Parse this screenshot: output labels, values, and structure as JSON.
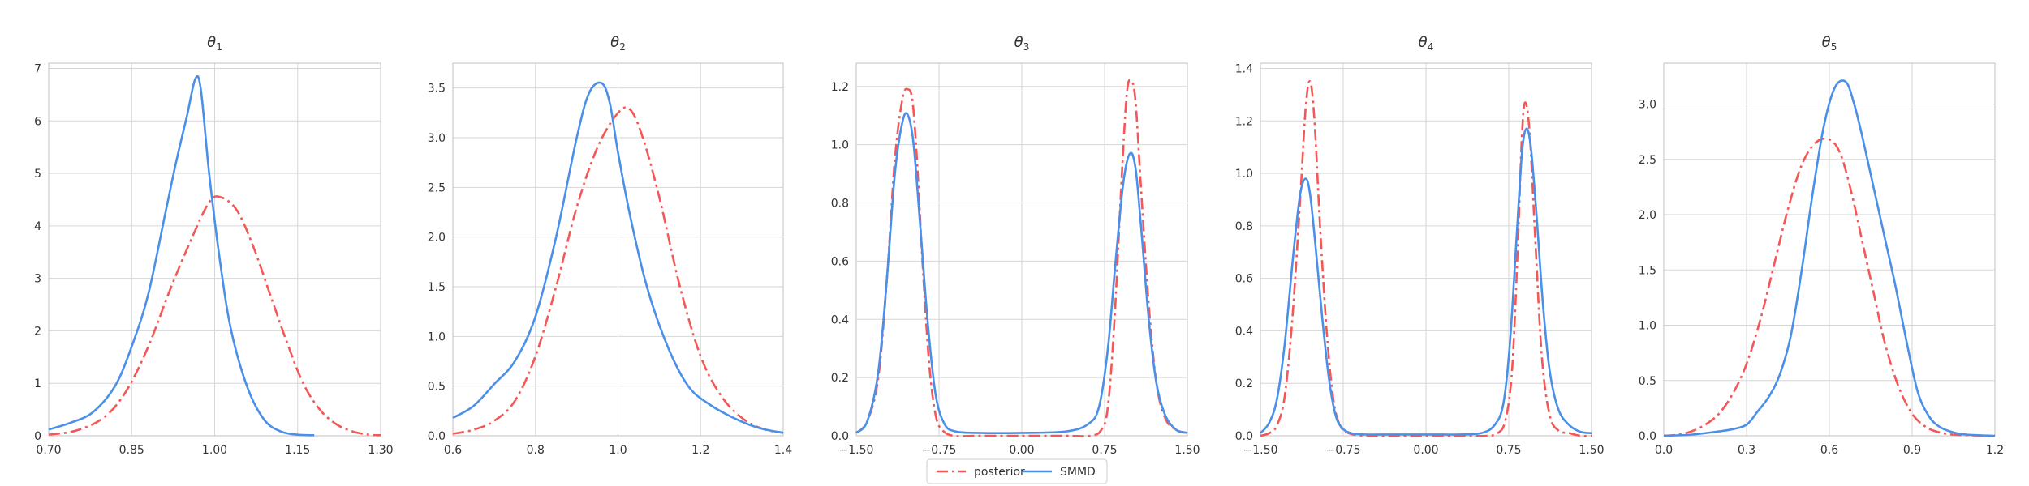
{
  "colors": {
    "posterior": "#f55656",
    "smmd": "#4a90e8",
    "grid": "#d6d6d6",
    "frame": "#cccccc",
    "text": "#333333"
  },
  "legend": {
    "items": [
      {
        "label": "posterior",
        "style": "dashdot",
        "color": "#f55656"
      },
      {
        "label": "SMMD",
        "style": "solid",
        "color": "#4a90e8"
      }
    ],
    "placement": "bottom-center"
  },
  "chart_data": [
    {
      "type": "line",
      "title": "θ1",
      "title_base": "θ",
      "title_sub": "1",
      "xlim": [
        0.7,
        1.3
      ],
      "ylim": [
        0,
        7.1
      ],
      "xticks": [
        "0.70",
        "0.85",
        "1.00",
        "1.15",
        "1.30"
      ],
      "xtick_values": [
        0.7,
        0.85,
        1.0,
        1.15,
        1.3
      ],
      "yticks": [
        "0",
        "1",
        "2",
        "3",
        "4",
        "5",
        "6",
        "7"
      ],
      "ytick_values": [
        0,
        1,
        2,
        3,
        4,
        5,
        6,
        7
      ],
      "grid": true,
      "series": [
        {
          "name": "posterior",
          "style": "dashdot",
          "x": [
            0.7,
            0.75,
            0.8,
            0.84,
            0.88,
            0.92,
            0.96,
            0.99,
            1.01,
            1.04,
            1.07,
            1.1,
            1.13,
            1.16,
            1.19,
            1.22,
            1.25,
            1.28,
            1.3
          ],
          "y": [
            0.02,
            0.1,
            0.35,
            0.85,
            1.7,
            2.8,
            3.8,
            4.45,
            4.55,
            4.3,
            3.6,
            2.7,
            1.8,
            1.0,
            0.5,
            0.22,
            0.08,
            0.02,
            0.01
          ]
        },
        {
          "name": "SMMD",
          "style": "solid",
          "x": [
            0.7,
            0.74,
            0.78,
            0.82,
            0.85,
            0.88,
            0.91,
            0.93,
            0.95,
            0.965,
            0.975,
            0.99,
            1.01,
            1.03,
            1.06,
            1.09,
            1.12,
            1.15,
            1.18
          ],
          "y": [
            0.12,
            0.25,
            0.45,
            0.95,
            1.7,
            2.7,
            4.2,
            5.2,
            6.1,
            6.8,
            6.6,
            5.0,
            3.3,
            2.0,
            0.9,
            0.3,
            0.08,
            0.02,
            0.01
          ]
        }
      ]
    },
    {
      "type": "line",
      "title": "θ2",
      "title_base": "θ",
      "title_sub": "2",
      "xlim": [
        0.6,
        1.4
      ],
      "ylim": [
        0,
        3.75
      ],
      "xticks": [
        "0.6",
        "0.8",
        "1.0",
        "1.2",
        "1.4"
      ],
      "xtick_values": [
        0.6,
        0.8,
        1.0,
        1.2,
        1.4
      ],
      "yticks": [
        "0.0",
        "0.5",
        "1.0",
        "1.5",
        "2.0",
        "2.5",
        "3.0",
        "3.5"
      ],
      "ytick_values": [
        0.0,
        0.5,
        1.0,
        1.5,
        2.0,
        2.5,
        3.0,
        3.5
      ],
      "grid": true,
      "series": [
        {
          "name": "posterior",
          "style": "dashdot",
          "x": [
            0.6,
            0.65,
            0.7,
            0.75,
            0.8,
            0.85,
            0.9,
            0.95,
            1.0,
            1.03,
            1.06,
            1.1,
            1.15,
            1.2,
            1.25,
            1.3,
            1.35,
            1.4
          ],
          "y": [
            0.02,
            0.06,
            0.15,
            0.35,
            0.8,
            1.5,
            2.3,
            2.9,
            3.25,
            3.28,
            3.0,
            2.4,
            1.5,
            0.8,
            0.4,
            0.18,
            0.07,
            0.03
          ]
        },
        {
          "name": "SMMD",
          "style": "solid",
          "x": [
            0.6,
            0.65,
            0.7,
            0.75,
            0.8,
            0.85,
            0.9,
            0.93,
            0.96,
            0.98,
            1.0,
            1.03,
            1.07,
            1.12,
            1.17,
            1.22,
            1.28,
            1.34,
            1.4
          ],
          "y": [
            0.18,
            0.3,
            0.52,
            0.75,
            1.2,
            2.0,
            3.0,
            3.45,
            3.55,
            3.35,
            2.85,
            2.2,
            1.5,
            0.9,
            0.5,
            0.32,
            0.18,
            0.08,
            0.03
          ]
        }
      ]
    },
    {
      "type": "line",
      "title": "θ3",
      "title_base": "θ",
      "title_sub": "3",
      "xlim": [
        -1.5,
        1.5
      ],
      "ylim": [
        0,
        1.28
      ],
      "xticks": [
        "−1.50",
        "−0.75",
        "0.00",
        "0.75",
        "1.50"
      ],
      "xtick_values": [
        -1.5,
        -0.75,
        0.0,
        0.75,
        1.5
      ],
      "yticks": [
        "0.0",
        "0.2",
        "0.4",
        "0.6",
        "0.8",
        "1.0",
        "1.2"
      ],
      "ytick_values": [
        0.0,
        0.2,
        0.4,
        0.6,
        0.8,
        1.0,
        1.2
      ],
      "grid": true,
      "series": [
        {
          "name": "posterior",
          "style": "dashdot",
          "x": [
            -1.5,
            -1.4,
            -1.3,
            -1.22,
            -1.15,
            -1.08,
            -1.03,
            -0.99,
            -0.95,
            -0.9,
            -0.84,
            -0.78,
            -0.72,
            -0.62,
            -0.4,
            0.0,
            0.4,
            0.62,
            0.72,
            0.78,
            0.84,
            0.9,
            0.95,
            0.99,
            1.03,
            1.08,
            1.15,
            1.22,
            1.3,
            1.4,
            1.5
          ],
          "y": [
            0.01,
            0.05,
            0.2,
            0.55,
            0.95,
            1.16,
            1.19,
            1.15,
            0.95,
            0.6,
            0.25,
            0.07,
            0.02,
            0.0,
            0.0,
            0.0,
            0.0,
            0.0,
            0.02,
            0.1,
            0.4,
            0.85,
            1.17,
            1.22,
            1.15,
            0.85,
            0.45,
            0.18,
            0.06,
            0.02,
            0.01
          ]
        },
        {
          "name": "SMMD",
          "style": "solid",
          "x": [
            -1.5,
            -1.4,
            -1.3,
            -1.22,
            -1.15,
            -1.08,
            -1.03,
            -0.98,
            -0.92,
            -0.85,
            -0.78,
            -0.7,
            -0.6,
            -0.4,
            0.0,
            0.4,
            0.6,
            0.7,
            0.78,
            0.85,
            0.92,
            0.98,
            1.03,
            1.08,
            1.15,
            1.22,
            1.3,
            1.4,
            1.5
          ],
          "y": [
            0.01,
            0.05,
            0.22,
            0.55,
            0.9,
            1.08,
            1.1,
            1.0,
            0.72,
            0.38,
            0.14,
            0.04,
            0.015,
            0.01,
            0.01,
            0.015,
            0.04,
            0.1,
            0.3,
            0.6,
            0.87,
            0.97,
            0.92,
            0.72,
            0.4,
            0.18,
            0.07,
            0.02,
            0.01
          ]
        }
      ]
    },
    {
      "type": "line",
      "title": "θ4",
      "title_base": "θ",
      "title_sub": "4",
      "xlim": [
        -1.5,
        1.5
      ],
      "ylim": [
        0,
        1.42
      ],
      "xticks": [
        "−1.50",
        "−0.75",
        "0.00",
        "0.75",
        "1.50"
      ],
      "xtick_values": [
        -1.5,
        -0.75,
        0.0,
        0.75,
        1.5
      ],
      "yticks": [
        "0.0",
        "0.2",
        "0.4",
        "0.6",
        "0.8",
        "1.0",
        "1.2",
        "1.4"
      ],
      "ytick_values": [
        0.0,
        0.2,
        0.4,
        0.6,
        0.8,
        1.0,
        1.2,
        1.4
      ],
      "grid": true,
      "series": [
        {
          "name": "posterior",
          "style": "dashdot",
          "x": [
            -1.5,
            -1.42,
            -1.35,
            -1.28,
            -1.21,
            -1.14,
            -1.09,
            -1.05,
            -1.01,
            -0.96,
            -0.9,
            -0.84,
            -0.78,
            -0.7,
            -0.55,
            -0.3,
            0.0,
            0.3,
            0.55,
            0.65,
            0.72,
            0.78,
            0.83,
            0.87,
            0.9,
            0.94,
            0.99,
            1.05,
            1.12,
            1.2,
            1.3,
            1.4,
            1.5
          ],
          "y": [
            0.0,
            0.01,
            0.04,
            0.15,
            0.45,
            0.9,
            1.25,
            1.35,
            1.2,
            0.8,
            0.4,
            0.14,
            0.04,
            0.01,
            0.0,
            0.0,
            0.0,
            0.0,
            0.0,
            0.01,
            0.06,
            0.25,
            0.7,
            1.15,
            1.27,
            1.15,
            0.75,
            0.3,
            0.08,
            0.02,
            0.01,
            0.0,
            0.0
          ]
        },
        {
          "name": "SMMD",
          "style": "solid",
          "x": [
            -1.5,
            -1.42,
            -1.35,
            -1.28,
            -1.2,
            -1.14,
            -1.09,
            -1.05,
            -1.0,
            -0.94,
            -0.88,
            -0.82,
            -0.76,
            -0.68,
            -0.55,
            -0.3,
            0.0,
            0.3,
            0.5,
            0.62,
            0.7,
            0.76,
            0.82,
            0.87,
            0.91,
            0.95,
            1.0,
            1.06,
            1.12,
            1.2,
            1.3,
            1.4,
            1.5
          ],
          "y": [
            0.01,
            0.05,
            0.14,
            0.35,
            0.7,
            0.92,
            0.98,
            0.92,
            0.72,
            0.45,
            0.22,
            0.08,
            0.03,
            0.01,
            0.005,
            0.005,
            0.005,
            0.005,
            0.01,
            0.04,
            0.12,
            0.35,
            0.75,
            1.08,
            1.17,
            1.1,
            0.85,
            0.5,
            0.25,
            0.1,
            0.04,
            0.015,
            0.01
          ]
        }
      ]
    },
    {
      "type": "line",
      "title": "θ5",
      "title_base": "θ",
      "title_sub": "5",
      "xlim": [
        0.0,
        1.2
      ],
      "ylim": [
        0,
        3.37
      ],
      "xticks": [
        "0.0",
        "0.3",
        "0.6",
        "0.9",
        "1.2"
      ],
      "xtick_values": [
        0.0,
        0.3,
        0.6,
        0.9,
        1.2
      ],
      "yticks": [
        "0.0",
        "0.5",
        "1.0",
        "1.5",
        "2.0",
        "2.5",
        "3.0"
      ],
      "ytick_values": [
        0.0,
        0.5,
        1.0,
        1.5,
        2.0,
        2.5,
        3.0
      ],
      "grid": true,
      "series": [
        {
          "name": "posterior",
          "style": "dashdot",
          "x": [
            0.0,
            0.05,
            0.1,
            0.15,
            0.2,
            0.25,
            0.3,
            0.35,
            0.4,
            0.45,
            0.5,
            0.55,
            0.6,
            0.64,
            0.68,
            0.72,
            0.76,
            0.8,
            0.85,
            0.9,
            0.95,
            1.0,
            1.05,
            1.1,
            1.2
          ],
          "y": [
            0.0,
            0.01,
            0.04,
            0.1,
            0.2,
            0.38,
            0.65,
            1.05,
            1.55,
            2.05,
            2.45,
            2.65,
            2.68,
            2.55,
            2.2,
            1.75,
            1.3,
            0.85,
            0.45,
            0.2,
            0.08,
            0.03,
            0.01,
            0.005,
            0.0
          ]
        },
        {
          "name": "SMMD",
          "style": "solid",
          "x": [
            0.0,
            0.1,
            0.2,
            0.25,
            0.3,
            0.34,
            0.38,
            0.42,
            0.46,
            0.5,
            0.54,
            0.58,
            0.62,
            0.66,
            0.69,
            0.72,
            0.76,
            0.8,
            0.84,
            0.88,
            0.92,
            0.96,
            1.0,
            1.05,
            1.1,
            1.2
          ],
          "y": [
            0.0,
            0.01,
            0.04,
            0.06,
            0.1,
            0.22,
            0.35,
            0.55,
            0.9,
            1.5,
            2.2,
            2.8,
            3.15,
            3.2,
            3.0,
            2.7,
            2.25,
            1.8,
            1.35,
            0.85,
            0.4,
            0.18,
            0.08,
            0.03,
            0.01,
            0.0
          ]
        }
      ]
    }
  ]
}
